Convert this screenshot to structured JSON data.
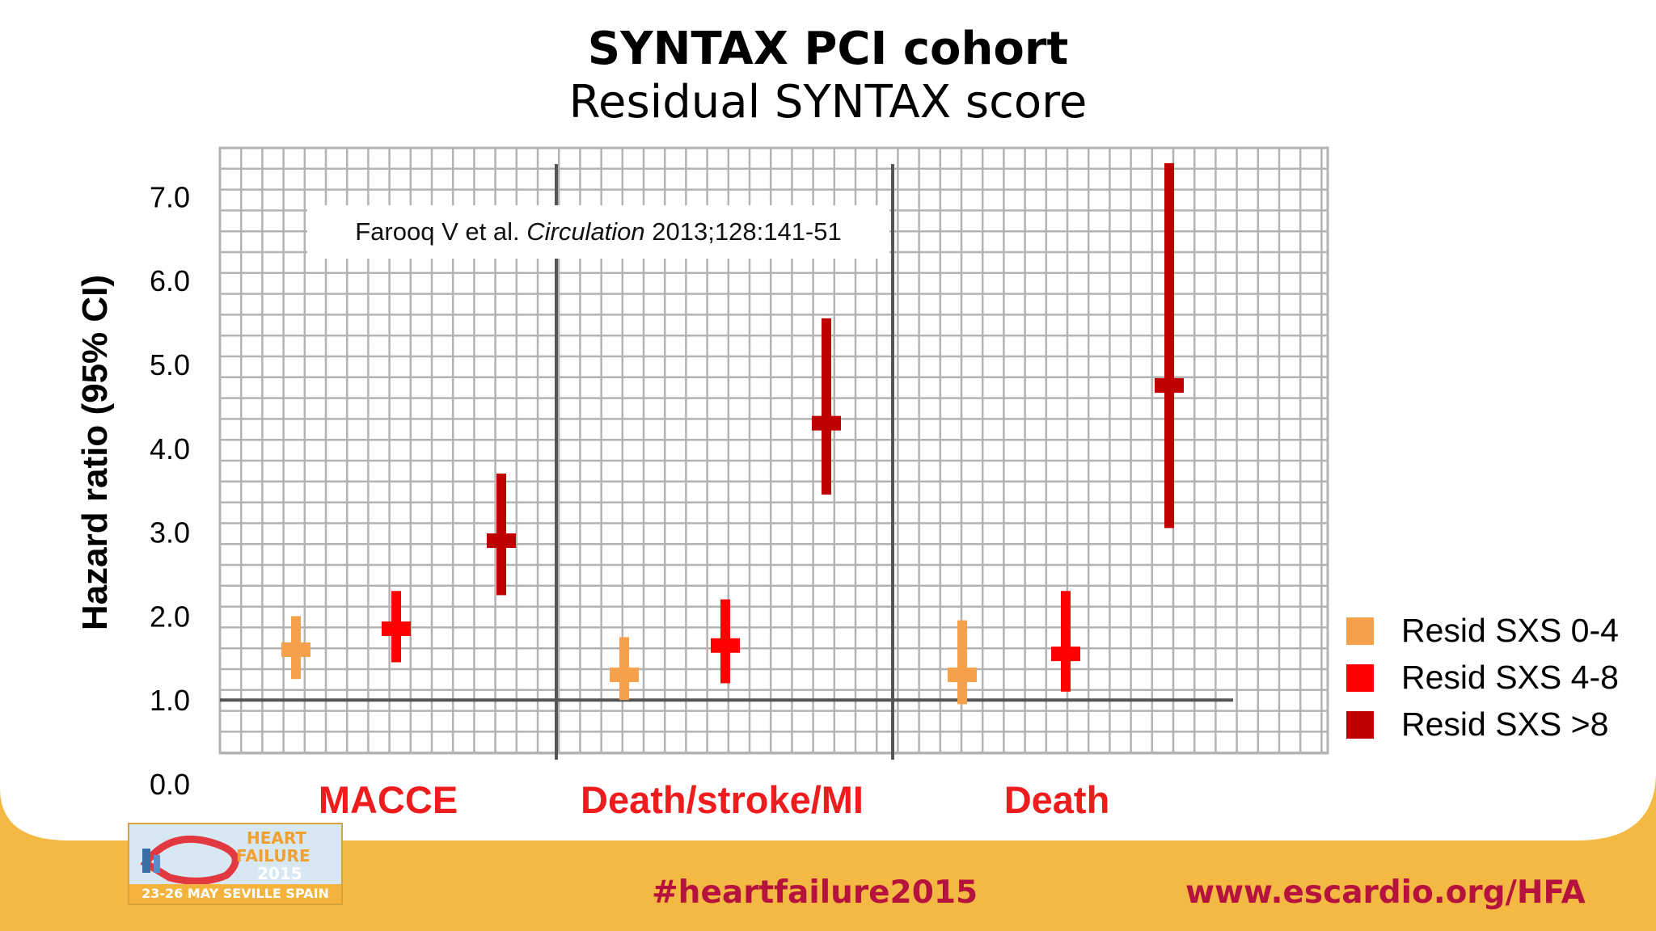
{
  "slide": {
    "title": "SYNTAX PCI cohort",
    "subtitle": "Residual SYNTAX score",
    "citation": {
      "authors": "Farooq V et al.",
      "journal": "Circulation",
      "details": "2013;128:141-51"
    },
    "footer": {
      "hashtag": "#heartfailure2015",
      "url": "www.escardio.org/HFA",
      "logo": {
        "line1": "HEART",
        "line2": "FAILURE",
        "line3": "2015",
        "bottom": "23-26 MAY SEVILLE SPAIN"
      }
    },
    "colors": {
      "banner": "#f4b942",
      "grid_line": "#b3b3b3",
      "axis_line": "#555555",
      "group_label": "#ee1c1c",
      "footer_text": "#b5123e"
    }
  },
  "chart_data": {
    "type": "forest",
    "ylabel": "Hazard ratio (95% CI)",
    "ylim": [
      0,
      7.5
    ],
    "yticks": [
      "0.0",
      "1.0",
      "2.0",
      "3.0",
      "4.0",
      "5.0",
      "6.0",
      "7.0"
    ],
    "reference_line": 1.0,
    "groups": [
      "MACCE",
      "Death/stroke/MI",
      "Death"
    ],
    "series": [
      {
        "name": "Resid SXS 0-4",
        "color": "#f5a04b",
        "points": [
          {
            "group": "MACCE",
            "hr": 1.6,
            "lo": 1.25,
            "hi": 2.0
          },
          {
            "group": "Death/stroke/MI",
            "hr": 1.3,
            "lo": 1.0,
            "hi": 1.75
          },
          {
            "group": "Death",
            "hr": 1.3,
            "lo": 0.95,
            "hi": 1.95
          }
        ]
      },
      {
        "name": "Resid SXS 4-8",
        "color": "#ff0000",
        "points": [
          {
            "group": "MACCE",
            "hr": 1.85,
            "lo": 1.45,
            "hi": 2.3
          },
          {
            "group": "Death/stroke/MI",
            "hr": 1.65,
            "lo": 1.2,
            "hi": 2.2
          },
          {
            "group": "Death",
            "hr": 1.55,
            "lo": 1.1,
            "hi": 2.3
          }
        ]
      },
      {
        "name": "Resid SXS >8",
        "color": "#c00000",
        "points": [
          {
            "group": "MACCE",
            "hr": 2.9,
            "lo": 2.25,
            "hi": 3.7
          },
          {
            "group": "Death/stroke/MI",
            "hr": 4.3,
            "lo": 3.45,
            "hi": 5.55
          },
          {
            "group": "Death",
            "hr": 4.75,
            "lo": 3.05,
            "hi": 7.4
          }
        ]
      }
    ]
  }
}
